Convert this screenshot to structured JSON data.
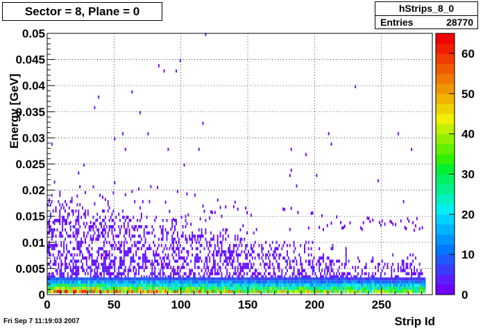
{
  "title": "Sector = 8, Plane = 0",
  "stats": {
    "name": "hStrips_8_0",
    "entries_label": "Entries",
    "entries_value": "28770"
  },
  "datestamp": "Fri Sep  7 11:19:03 2007",
  "chart_data": {
    "type": "heatmap",
    "xlabel": "Strip Id",
    "ylabel": "Energy [GeV]",
    "xlim": [
      0,
      288
    ],
    "ylim": [
      0,
      0.05
    ],
    "x_ticks": [
      "0",
      "50",
      "100",
      "150",
      "200",
      "250"
    ],
    "y_ticks": [
      "0",
      "0.005",
      "0.01",
      "0.015",
      "0.02",
      "0.025",
      "0.03",
      "0.035",
      "0.04",
      "0.045",
      "0.05"
    ],
    "x_tick_values": [
      0,
      50,
      100,
      150,
      200,
      250
    ],
    "y_tick_values": [
      0,
      0.005,
      0.01,
      0.015,
      0.02,
      0.025,
      0.03,
      0.035,
      0.04,
      0.045,
      0.05
    ],
    "grid": true,
    "n_strips": 283,
    "colorbar": {
      "min": 0,
      "max": 65,
      "ticks": [
        "0",
        "10",
        "20",
        "30",
        "40",
        "50",
        "60"
      ],
      "tick_values": [
        0,
        10,
        20,
        30,
        40,
        50,
        60
      ],
      "colors": [
        "#6e00ff",
        "#5a1eff",
        "#3c3cff",
        "#1e5aff",
        "#0078ff",
        "#0096ff",
        "#00b4ff",
        "#00d2ff",
        "#00f0f0",
        "#00f0c0",
        "#00f090",
        "#00f060",
        "#00f030",
        "#30f000",
        "#60f000",
        "#90f000",
        "#c0f000",
        "#f0f000",
        "#f0d200",
        "#f0b400",
        "#f09600",
        "#f07800",
        "#f05a00",
        "#f03c00",
        "#f01e00",
        "#f00000"
      ]
    },
    "energy_rows": [
      {
        "e": 0.0003,
        "level": "hot"
      },
      {
        "e": 0.0009,
        "level": "warm"
      },
      {
        "e": 0.0015,
        "level": "mid"
      },
      {
        "e": 0.0021,
        "level": "cool"
      },
      {
        "e": 0.0027,
        "level": "low"
      }
    ],
    "outliers": [
      [
        3,
        0.0285
      ],
      [
        27,
        0.0245
      ],
      [
        35,
        0.0355
      ],
      [
        38,
        0.0375
      ],
      [
        50,
        0.0295
      ],
      [
        56,
        0.0305
      ],
      [
        63,
        0.0385
      ],
      [
        58,
        0.0275
      ],
      [
        69,
        0.0345
      ],
      [
        75,
        0.0305
      ],
      [
        83,
        0.0435
      ],
      [
        87,
        0.0425
      ],
      [
        90,
        0.0275
      ],
      [
        96,
        0.0425
      ],
      [
        99,
        0.0445
      ],
      [
        102,
        0.0245
      ],
      [
        113,
        0.0275
      ],
      [
        116,
        0.0325
      ],
      [
        118,
        0.0495
      ],
      [
        181,
        0.0225
      ],
      [
        182,
        0.0275
      ],
      [
        182,
        0.0235
      ],
      [
        186,
        0.0205
      ],
      [
        193,
        0.0265
      ],
      [
        201,
        0.0225
      ],
      [
        210,
        0.0305
      ],
      [
        212,
        0.0285
      ],
      [
        230,
        0.0395
      ],
      [
        247,
        0.0215
      ],
      [
        262,
        0.0305
      ],
      [
        272,
        0.0275
      ],
      [
        266,
        0.0175
      ],
      [
        280,
        0.0125
      ]
    ]
  }
}
